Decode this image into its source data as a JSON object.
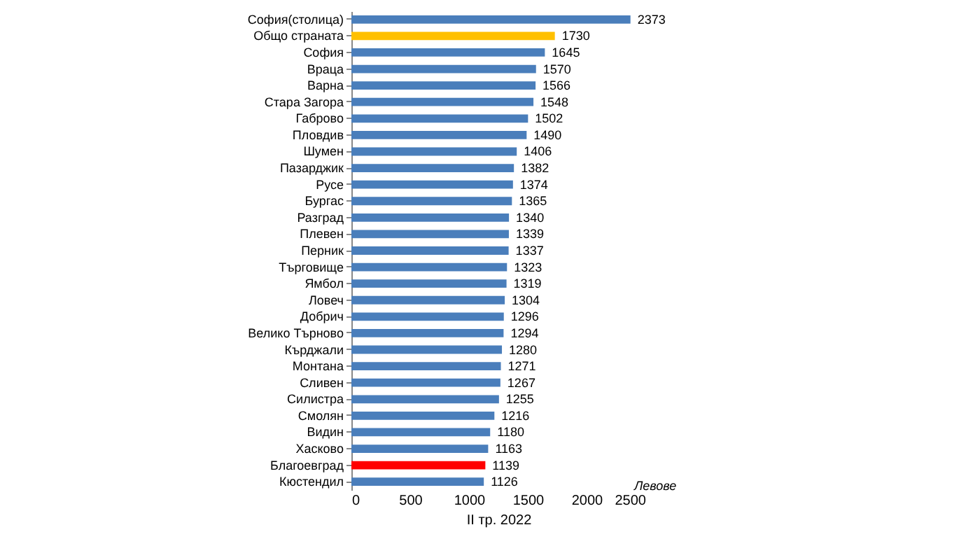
{
  "chart_data": {
    "type": "bar",
    "orientation": "horizontal",
    "xlabel": "II тр. 2022",
    "annotations": [
      "Левове"
    ],
    "categories": [
      "София(столица)",
      "Общо страната",
      "София",
      "Враца",
      "Варна",
      "Стара Загора",
      "Габрово",
      "Пловдив",
      "Шумен",
      "Пазарджик",
      "Русе",
      "Бургас",
      "Разград",
      "Плевен",
      "Перник",
      "Търговище",
      "Ямбол",
      "Ловеч",
      "Добрич",
      "Велико Търново",
      "Кърджали",
      "Монтана",
      "Сливен",
      "Силистра",
      "Смолян",
      "Видин",
      "Хасково",
      "Благоевград",
      "Кюстендил"
    ],
    "values": [
      2373,
      1730,
      1645,
      1570,
      1566,
      1548,
      1502,
      1490,
      1406,
      1382,
      1374,
      1365,
      1340,
      1339,
      1337,
      1323,
      1319,
      1304,
      1296,
      1294,
      1280,
      1271,
      1267,
      1255,
      1216,
      1180,
      1163,
      1139,
      1126
    ],
    "colors": [
      "#4a7ebb",
      "#ffc000",
      "#4a7ebb",
      "#4a7ebb",
      "#4a7ebb",
      "#4a7ebb",
      "#4a7ebb",
      "#4a7ebb",
      "#4a7ebb",
      "#4a7ebb",
      "#4a7ebb",
      "#4a7ebb",
      "#4a7ebb",
      "#4a7ebb",
      "#4a7ebb",
      "#4a7ebb",
      "#4a7ebb",
      "#4a7ebb",
      "#4a7ebb",
      "#4a7ebb",
      "#4a7ebb",
      "#4a7ebb",
      "#4a7ebb",
      "#4a7ebb",
      "#4a7ebb",
      "#4a7ebb",
      "#4a7ebb",
      "#ff0000",
      "#4a7ebb"
    ],
    "xlim": [
      0,
      2500
    ],
    "xticks": [
      0,
      500,
      1000,
      1500,
      2000,
      2500
    ],
    "data_labels": true
  }
}
